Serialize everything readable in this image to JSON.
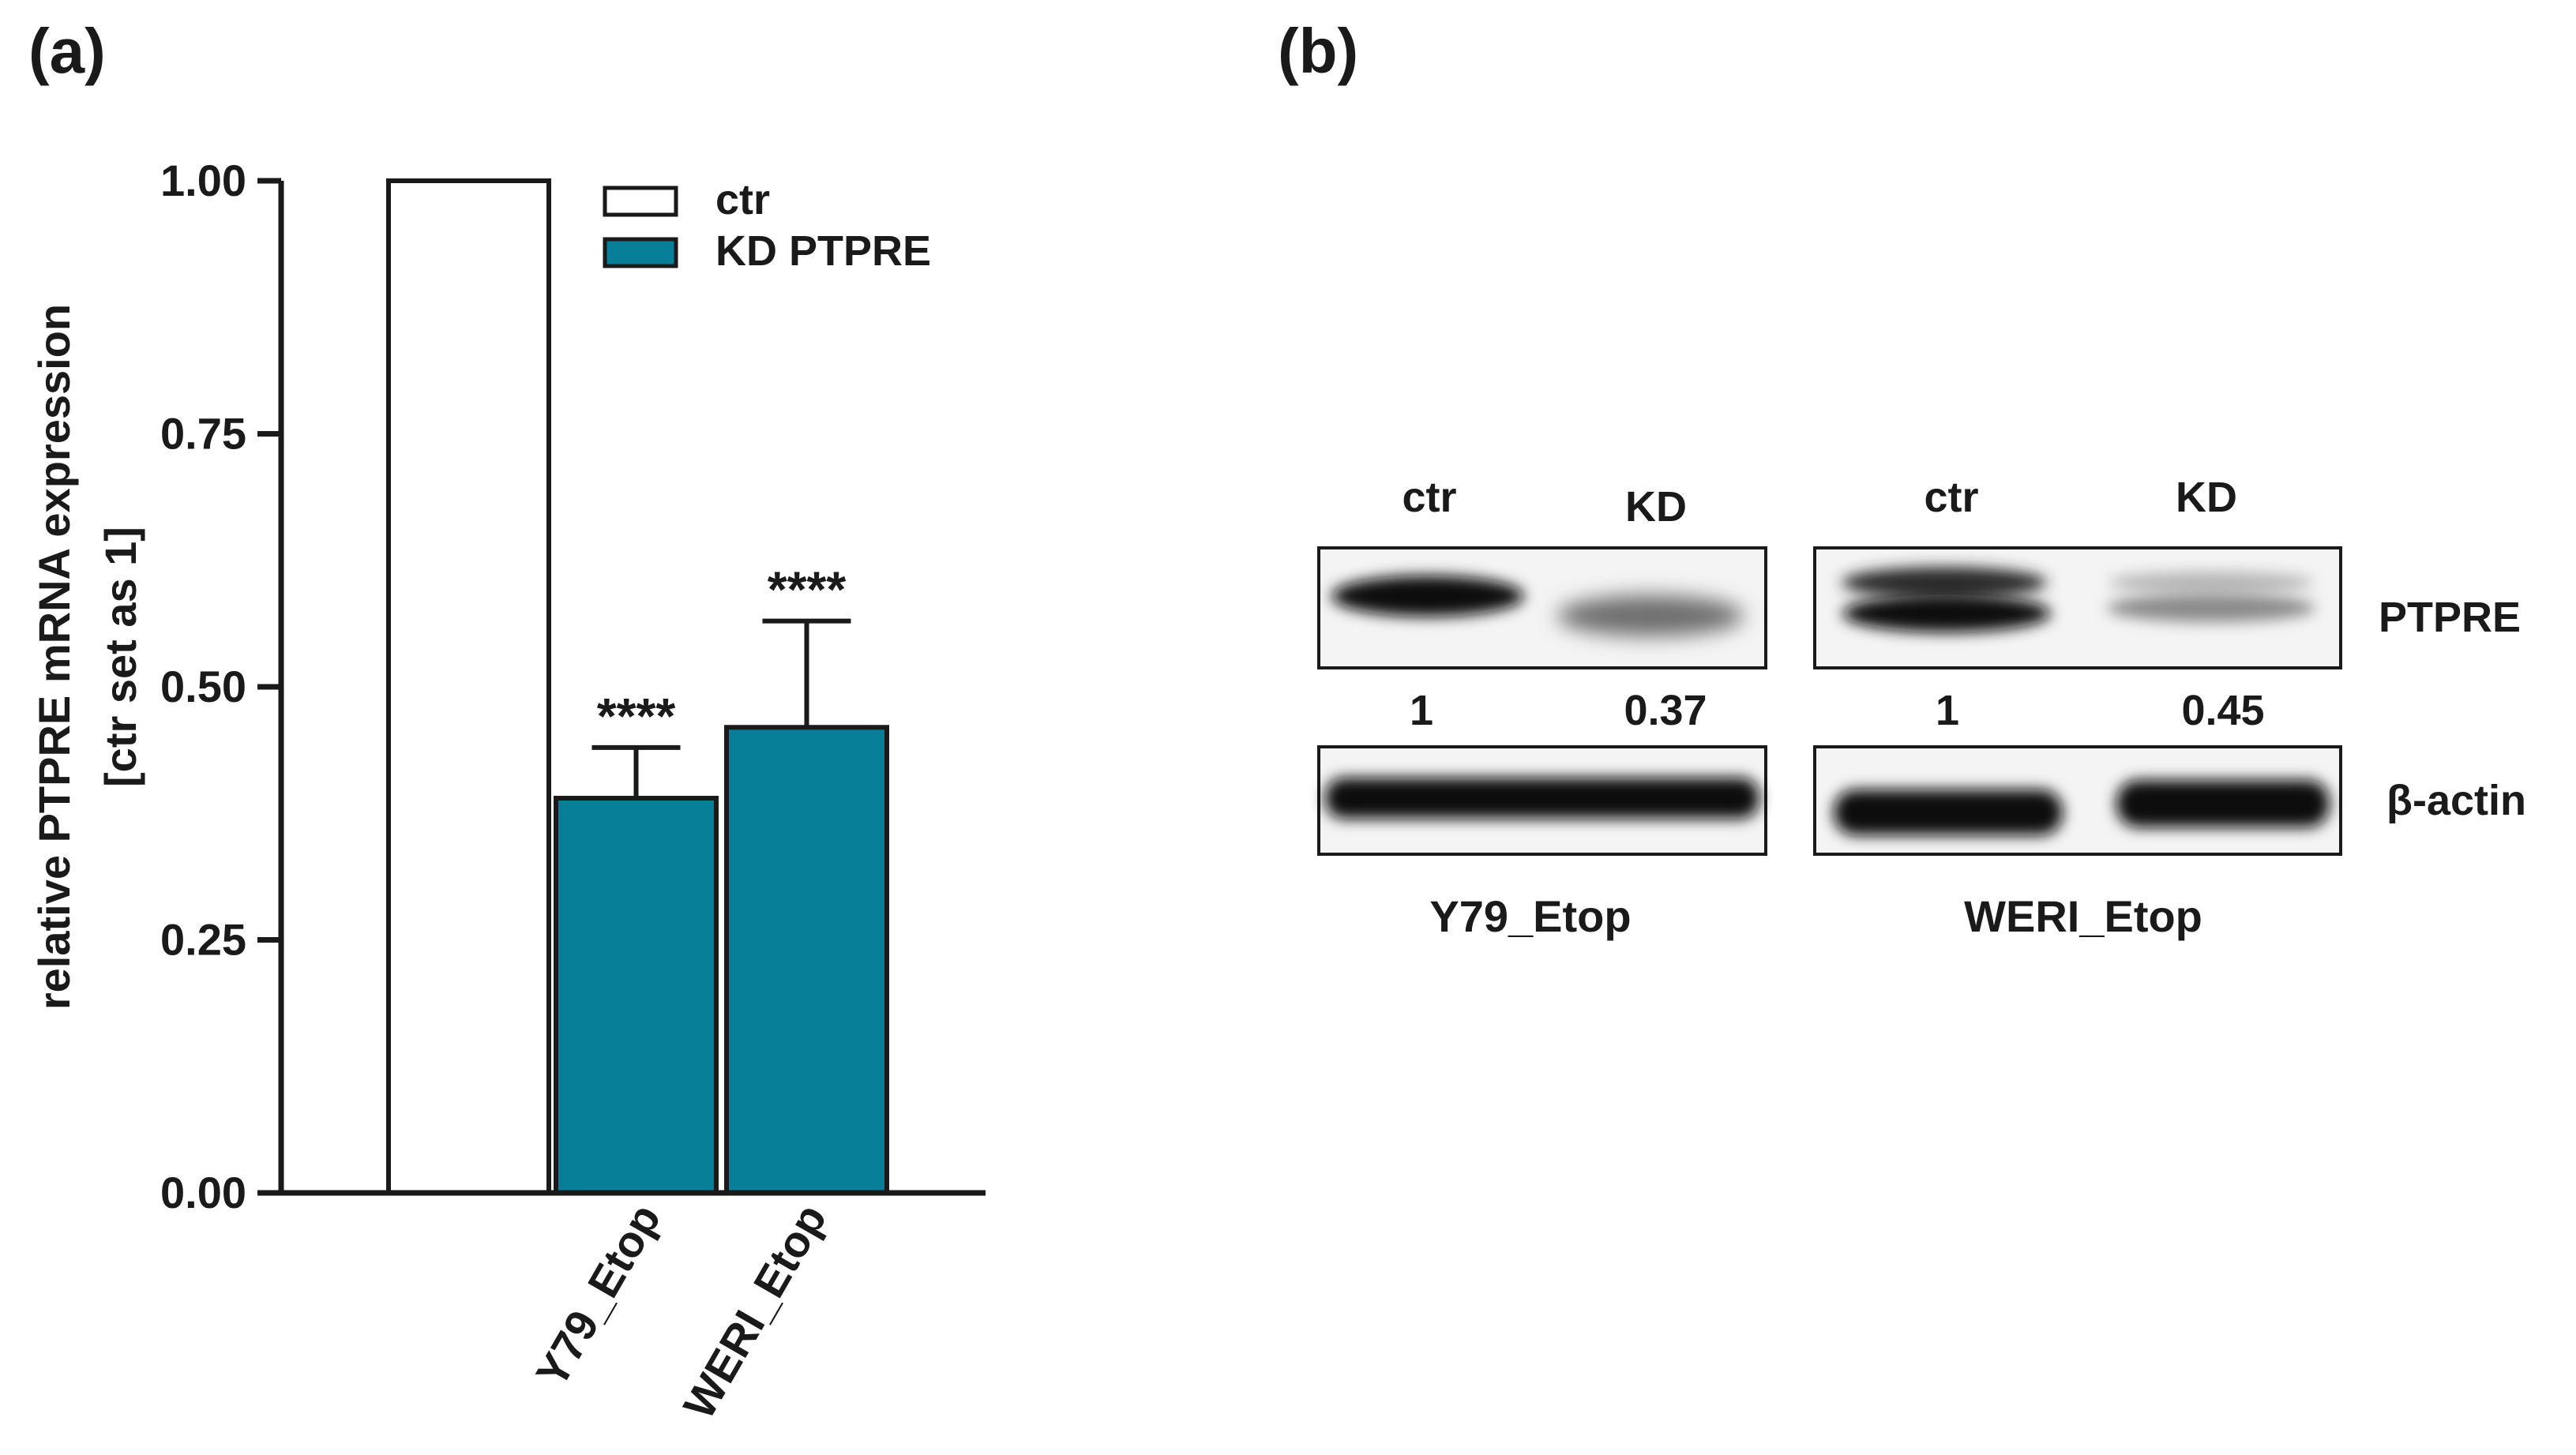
{
  "panels": {
    "a_label": "(a)",
    "b_label": "(b)"
  },
  "chart_data": {
    "type": "bar",
    "ylabel": "relative PTPRE mRNA expression",
    "ylabel_line2": "[ctr set as 1]",
    "ylim": [
      0,
      1.0
    ],
    "yticks": [
      "0.00",
      "0.25",
      "0.50",
      "0.75",
      "1.00"
    ],
    "ytick_values": [
      0,
      0.25,
      0.5,
      0.75,
      1.0
    ],
    "categories": [
      "Y79_Etop",
      "WERI_Etop"
    ],
    "legend": [
      {
        "name": "ctr",
        "color": "#ffffff"
      },
      {
        "name": "KD PTPRE",
        "color": "#087f98"
      }
    ],
    "bars": [
      {
        "series": "ctr",
        "label": "ctr",
        "value": 1.0,
        "error": 0,
        "significance": "",
        "color": "#ffffff"
      },
      {
        "series": "KD PTPRE",
        "label": "Y79_Etop",
        "value": 0.39,
        "error": 0.05,
        "significance": "****",
        "color": "#087f98"
      },
      {
        "series": "KD PTPRE",
        "label": "WERI_Etop",
        "value": 0.46,
        "error": 0.105,
        "significance": "****",
        "color": "#087f98"
      }
    ]
  },
  "western_blot": {
    "blots": [
      {
        "cell_line": "Y79_Etop",
        "lanes": [
          "ctr",
          "KD"
        ],
        "quantification": [
          "1",
          "0.37"
        ]
      },
      {
        "cell_line": "WERI_Etop",
        "lanes": [
          "ctr",
          "KD"
        ],
        "quantification": [
          "1",
          "0.45"
        ]
      }
    ],
    "rows": [
      "PTPRE",
      "β-actin"
    ]
  }
}
